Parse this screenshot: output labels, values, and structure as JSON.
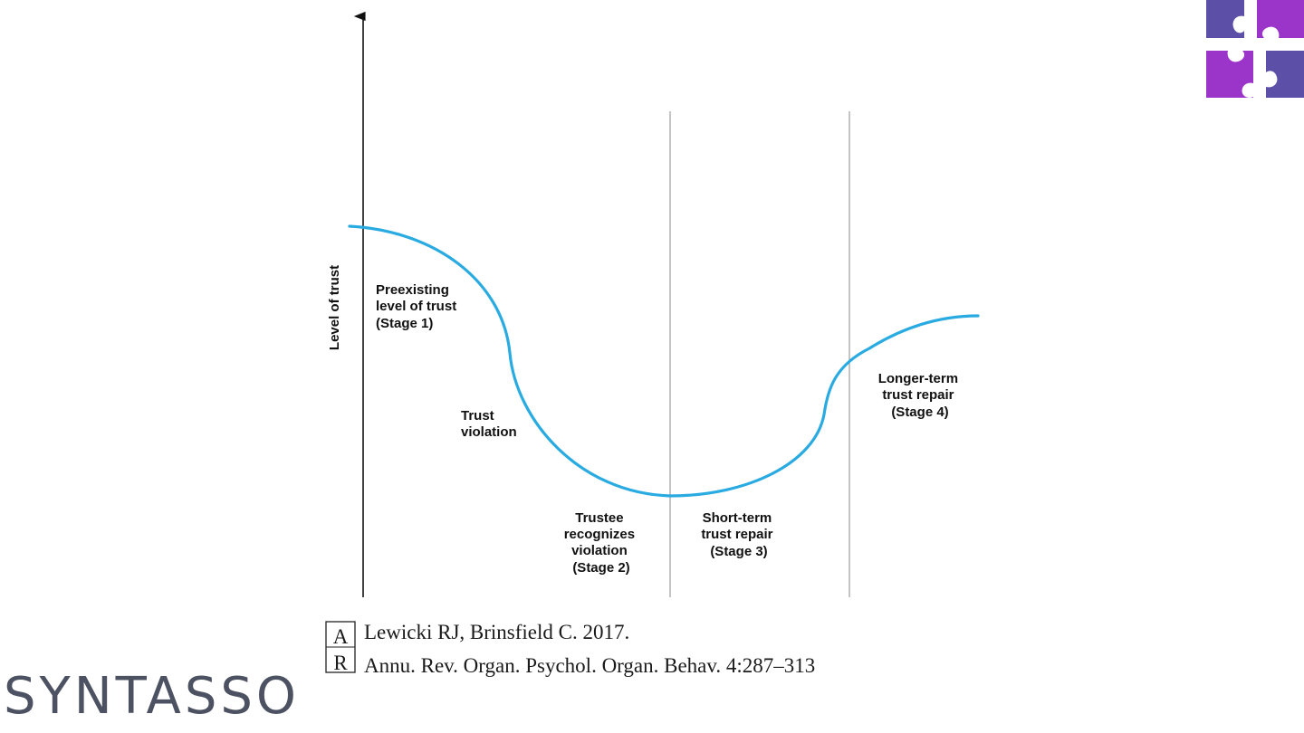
{
  "diagram": {
    "y_axis_label": "Level of trust",
    "stages": [
      {
        "id": "stage1",
        "lines": [
          "Preexisting",
          "level of trust",
          "(Stage 1)"
        ]
      },
      {
        "id": "violation",
        "lines": [
          "Trust",
          "violation"
        ]
      },
      {
        "id": "stage2",
        "lines": [
          "Trustee",
          "recognizes",
          "violation",
          "(Stage 2)"
        ]
      },
      {
        "id": "stage3",
        "lines": [
          "Short-term",
          "trust repair",
          "(Stage 3)"
        ]
      },
      {
        "id": "stage4",
        "lines": [
          "Longer-term",
          "trust repair",
          "(Stage 4)"
        ]
      }
    ],
    "curve_color": "#29abe2"
  },
  "citation": {
    "logo_letters": [
      "A",
      "R"
    ],
    "line1": "Lewicki RJ, Brinsfield C. 2017.",
    "line2": "Annu. Rev. Organ. Psychol. Organ. Behav. 4:287–313"
  },
  "brand": {
    "name": "SYNTASSO",
    "text_color": "#4d5262",
    "logo_colors": [
      "#5b4fa8",
      "#9b35c9"
    ],
    "logo_icon": "puzzle-icon"
  }
}
